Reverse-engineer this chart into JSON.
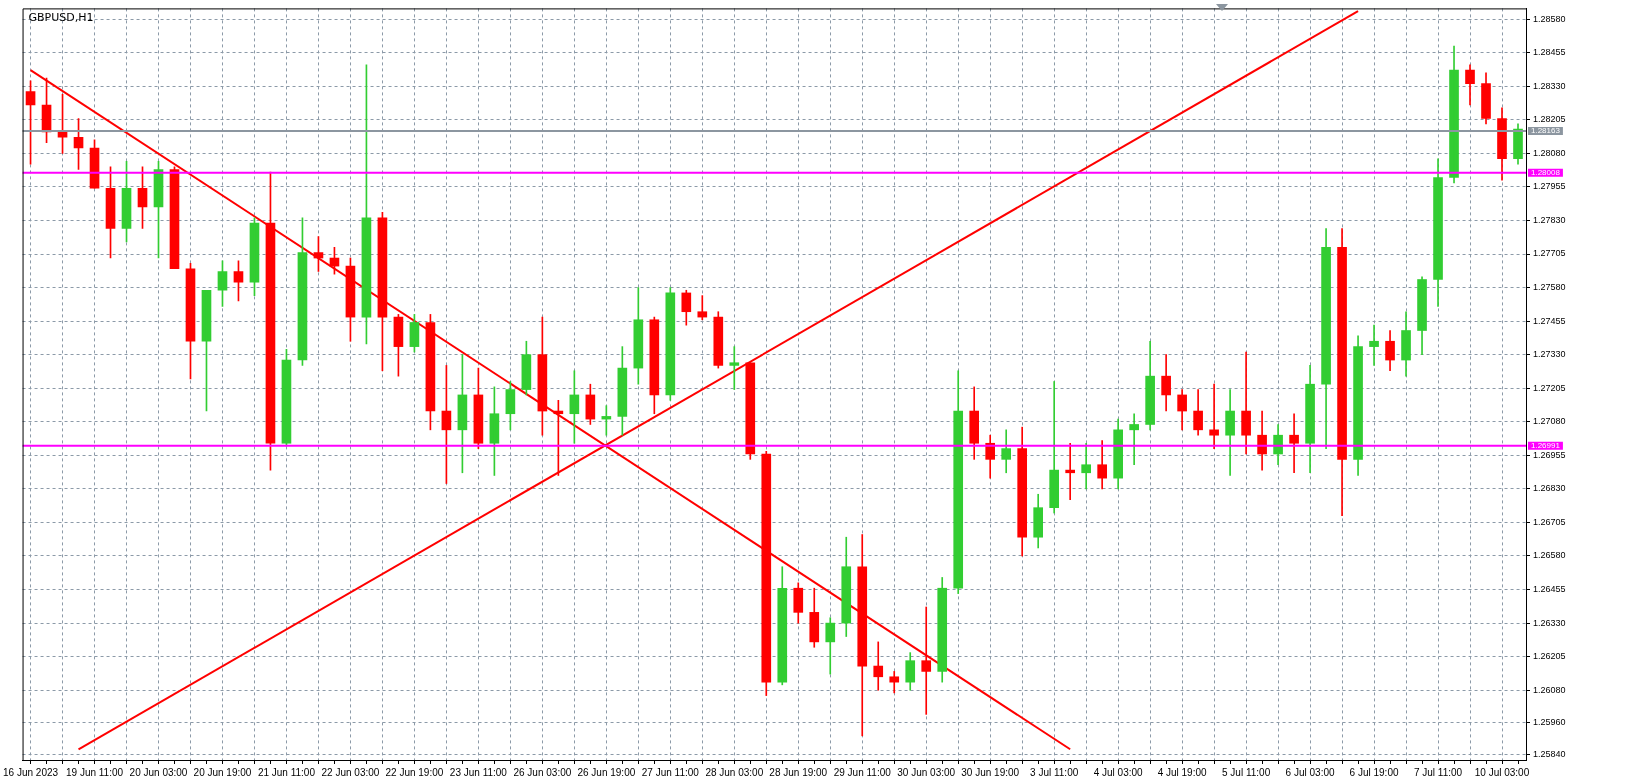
{
  "chart_data": {
    "type": "candlestick",
    "title": "GBPUSD,H1",
    "categories": [
      "16 Jun 2023",
      null,
      null,
      null,
      "19 Jun 11:00",
      null,
      null,
      null,
      "20 Jun 03:00",
      null,
      null,
      null,
      "20 Jun 19:00",
      null,
      null,
      null,
      "21 Jun 11:00",
      null,
      null,
      null,
      "22 Jun 03:00",
      null,
      null,
      null,
      "22 Jun 19:00",
      null,
      null,
      null,
      "23 Jun 11:00",
      null,
      null,
      null,
      "26 Jun 03:00",
      null,
      null,
      null,
      "26 Jun 19:00",
      null,
      null,
      null,
      "27 Jun 11:00",
      null,
      null,
      null,
      "28 Jun 03:00",
      null,
      null,
      null,
      "28 Jun 19:00",
      null,
      null,
      null,
      "29 Jun 11:00",
      null,
      null,
      null,
      "30 Jun 03:00",
      null,
      null,
      null,
      "30 Jun 19:00",
      null,
      null,
      null,
      "3 Jul 11:00",
      null,
      null,
      null,
      "4 Jul 03:00",
      null,
      null,
      null,
      "4 Jul 19:00",
      null,
      null,
      null,
      "5 Jul 11:00",
      null,
      null,
      null,
      "6 Jul 03:00",
      null,
      null,
      null,
      "6 Jul 19:00",
      null,
      null,
      null,
      "7 Jul 11:00",
      null,
      null,
      null,
      "10 Jul 03:00",
      null
    ],
    "ohlc": [
      [
        1.2831,
        1.2835,
        1.2804,
        1.2826
      ],
      [
        1.2826,
        1.2836,
        1.2812,
        1.2816
      ],
      [
        1.2816,
        1.283,
        1.2808,
        1.2814
      ],
      [
        1.2814,
        1.2821,
        1.2802,
        1.281
      ],
      [
        1.281,
        1.2813,
        1.2795,
        1.2795
      ],
      [
        1.2795,
        1.2803,
        1.2769,
        1.278
      ],
      [
        1.278,
        1.2805,
        1.2775,
        1.2795
      ],
      [
        1.2795,
        1.2803,
        1.278,
        1.2788
      ],
      [
        1.2788,
        1.2805,
        1.2769,
        1.2802
      ],
      [
        1.2802,
        1.2803,
        1.2765,
        1.2765
      ],
      [
        1.2765,
        1.2767,
        1.2724,
        1.2738
      ],
      [
        1.2738,
        1.2757,
        1.2712,
        1.2757
      ],
      [
        1.2757,
        1.2768,
        1.2751,
        1.2764
      ],
      [
        1.2764,
        1.2768,
        1.2753,
        1.276
      ],
      [
        1.276,
        1.2784,
        1.2755,
        1.2782
      ],
      [
        1.2782,
        1.2801,
        1.269,
        1.27
      ],
      [
        1.27,
        1.2735,
        1.2699,
        1.2731
      ],
      [
        1.2731,
        1.2784,
        1.2729,
        1.2771
      ],
      [
        1.2771,
        1.2777,
        1.2764,
        1.2769
      ],
      [
        1.2769,
        1.2773,
        1.2763,
        1.2766
      ],
      [
        1.2766,
        1.2769,
        1.2738,
        1.2747
      ],
      [
        1.2747,
        1.2841,
        1.2737,
        1.2784
      ],
      [
        1.2784,
        1.2786,
        1.2727,
        1.2747
      ],
      [
        1.2747,
        1.2748,
        1.2725,
        1.2736
      ],
      [
        1.2736,
        1.2748,
        1.2734,
        1.2745
      ],
      [
        1.2745,
        1.2748,
        1.2705,
        1.2712
      ],
      [
        1.2712,
        1.2729,
        1.2685,
        1.2705
      ],
      [
        1.2705,
        1.2733,
        1.2689,
        1.2718
      ],
      [
        1.2718,
        1.2728,
        1.2698,
        1.27
      ],
      [
        1.27,
        1.2721,
        1.2688,
        1.2711
      ],
      [
        1.2711,
        1.2723,
        1.2705,
        1.272
      ],
      [
        1.272,
        1.2738,
        1.2718,
        1.2733
      ],
      [
        1.2733,
        1.2747,
        1.2703,
        1.2712
      ],
      [
        1.2712,
        1.2716,
        1.2688,
        1.2711
      ],
      [
        1.2711,
        1.2727,
        1.27,
        1.2718
      ],
      [
        1.2718,
        1.2722,
        1.2707,
        1.2709
      ],
      [
        1.2709,
        1.2714,
        1.2703,
        1.271
      ],
      [
        1.271,
        1.2736,
        1.2703,
        1.2728
      ],
      [
        1.2728,
        1.2758,
        1.2722,
        1.2746
      ],
      [
        1.2746,
        1.2747,
        1.2711,
        1.2718
      ],
      [
        1.2718,
        1.2758,
        1.2716,
        1.2756
      ],
      [
        1.2756,
        1.2757,
        1.2744,
        1.2749
      ],
      [
        1.2749,
        1.2755,
        1.2746,
        1.2747
      ],
      [
        1.2747,
        1.2749,
        1.2728,
        1.2729
      ],
      [
        1.2729,
        1.2736,
        1.272,
        1.273
      ],
      [
        1.273,
        1.273,
        1.2694,
        1.2696
      ],
      [
        1.2696,
        1.2697,
        1.2606,
        1.2611
      ],
      [
        1.2611,
        1.2654,
        1.261,
        1.2646
      ],
      [
        1.2646,
        1.2648,
        1.2633,
        1.2637
      ],
      [
        1.2637,
        1.2646,
        1.2624,
        1.2626
      ],
      [
        1.2626,
        1.2635,
        1.2614,
        1.2633
      ],
      [
        1.2633,
        1.2665,
        1.2628,
        1.2654
      ],
      [
        1.2654,
        1.2666,
        1.2591,
        1.2617
      ],
      [
        1.2617,
        1.2626,
        1.2608,
        1.2613
      ],
      [
        1.2613,
        1.2615,
        1.2607,
        1.2611
      ],
      [
        1.2611,
        1.2622,
        1.2608,
        1.2619
      ],
      [
        1.2619,
        1.2639,
        1.2599,
        1.2615
      ],
      [
        1.2615,
        1.265,
        1.2611,
        1.2646
      ],
      [
        1.2646,
        1.2727,
        1.2644,
        1.2712
      ],
      [
        1.2712,
        1.2721,
        1.2694,
        1.27
      ],
      [
        1.27,
        1.2703,
        1.2687,
        1.2694
      ],
      [
        1.2694,
        1.2705,
        1.2689,
        1.2698
      ],
      [
        1.2698,
        1.2706,
        1.2658,
        1.2665
      ],
      [
        1.2665,
        1.2681,
        1.2661,
        1.2676
      ],
      [
        1.2676,
        1.2723,
        1.2674,
        1.269
      ],
      [
        1.269,
        1.27,
        1.2679,
        1.2689
      ],
      [
        1.2689,
        1.27,
        1.2683,
        1.2692
      ],
      [
        1.2692,
        1.2701,
        1.2683,
        1.2687
      ],
      [
        1.2687,
        1.2709,
        1.2683,
        1.2705
      ],
      [
        1.2705,
        1.2711,
        1.2692,
        1.2707
      ],
      [
        1.2707,
        1.2738,
        1.2705,
        1.2725
      ],
      [
        1.2725,
        1.2733,
        1.2712,
        1.2718
      ],
      [
        1.2718,
        1.272,
        1.2705,
        1.2712
      ],
      [
        1.2712,
        1.272,
        1.2703,
        1.2705
      ],
      [
        1.2705,
        1.2722,
        1.2698,
        1.2703
      ],
      [
        1.2703,
        1.272,
        1.2688,
        1.2712
      ],
      [
        1.2712,
        1.2734,
        1.2696,
        1.2703
      ],
      [
        1.2703,
        1.2712,
        1.269,
        1.2696
      ],
      [
        1.2696,
        1.2707,
        1.2692,
        1.2703
      ],
      [
        1.2703,
        1.2711,
        1.2689,
        1.27
      ],
      [
        1.27,
        1.2729,
        1.2689,
        1.2722
      ],
      [
        1.2722,
        1.278,
        1.2698,
        1.2773
      ],
      [
        1.2773,
        1.278,
        1.2673,
        1.2694
      ],
      [
        1.2694,
        1.274,
        1.2688,
        1.2736
      ],
      [
        1.2736,
        1.2744,
        1.2729,
        1.2738
      ],
      [
        1.2738,
        1.2742,
        1.2727,
        1.2731
      ],
      [
        1.2731,
        1.2749,
        1.2725,
        1.2742
      ],
      [
        1.2742,
        1.2762,
        1.2733,
        1.2761
      ],
      [
        1.2761,
        1.2806,
        1.2751,
        1.2799
      ],
      [
        1.2799,
        1.2848,
        1.2797,
        1.2839
      ],
      [
        1.2839,
        1.2841,
        1.2826,
        1.2834
      ],
      [
        1.2834,
        1.2838,
        1.2819,
        1.2821
      ],
      [
        1.2821,
        1.2825,
        1.2798,
        1.2806
      ],
      [
        1.2806,
        1.2819,
        1.2804,
        1.2817
      ]
    ],
    "colors": [
      "#ff0000",
      "#ff0000",
      "#ff0000",
      "#ff0000",
      "#ff0000",
      "#ff0000",
      "#32cd32",
      "#ff0000",
      "#32cd32",
      "#ff0000",
      "#ff0000",
      "#32cd32",
      "#32cd32",
      "#ff0000",
      "#32cd32",
      "#ff0000",
      "#32cd32",
      "#32cd32",
      "#ff0000",
      "#ff0000",
      "#ff0000",
      "#32cd32",
      "#ff0000",
      "#ff0000",
      "#32cd32",
      "#ff0000",
      "#ff0000",
      "#32cd32",
      "#ff0000",
      "#32cd32",
      "#32cd32",
      "#32cd32",
      "#ff0000",
      "#ff0000",
      "#32cd32",
      "#ff0000",
      "#32cd32",
      "#32cd32",
      "#32cd32",
      "#ff0000",
      "#32cd32",
      "#ff0000",
      "#ff0000",
      "#ff0000",
      "#32cd32",
      "#ff0000",
      "#ff0000",
      "#32cd32",
      "#ff0000",
      "#ff0000",
      "#32cd32",
      "#32cd32",
      "#ff0000",
      "#ff0000",
      "#ff0000",
      "#32cd32",
      "#ff0000",
      "#32cd32",
      "#32cd32",
      "#ff0000",
      "#ff0000",
      "#32cd32",
      "#ff0000",
      "#32cd32",
      "#32cd32",
      "#ff0000",
      "#32cd32",
      "#ff0000",
      "#32cd32",
      "#32cd32",
      "#32cd32",
      "#ff0000",
      "#ff0000",
      "#ff0000",
      "#ff0000",
      "#32cd32",
      "#ff0000",
      "#ff0000",
      "#32cd32",
      "#ff0000",
      "#32cd32",
      "#32cd32",
      "#ff0000",
      "#32cd32",
      "#32cd32",
      "#ff0000",
      "#32cd32",
      "#32cd32",
      "#32cd32",
      "#32cd32",
      "#ff0000",
      "#ff0000",
      "#ff0000",
      "#32cd32"
    ],
    "series": [
      {
        "type": "line",
        "color": "#ff0000",
        "values": [
          1.2839,
          null,
          null,
          null,
          null,
          null,
          null,
          null,
          null,
          null,
          null,
          null,
          null,
          null,
          null,
          null,
          null,
          null,
          null,
          null,
          null,
          null,
          null,
          null,
          null,
          null,
          null,
          null,
          null,
          null,
          null,
          null,
          null,
          null,
          null,
          null,
          null,
          null,
          null,
          null,
          null,
          null,
          null,
          null,
          null,
          null,
          null,
          null,
          null,
          null,
          null,
          null,
          null,
          null,
          null,
          null,
          null,
          null,
          null,
          null,
          null,
          null,
          null,
          null,
          null,
          1.2586,
          null,
          null,
          null,
          null,
          null,
          null,
          null,
          null,
          null,
          null,
          null,
          null,
          null,
          null,
          null,
          null,
          null,
          null,
          null,
          null,
          null,
          null,
          null,
          null,
          null,
          null,
          null,
          null
        ]
      },
      {
        "type": "line",
        "color": "#ff0000",
        "values": [
          null,
          null,
          null,
          1.2586,
          null,
          null,
          null,
          null,
          null,
          null,
          null,
          null,
          null,
          null,
          null,
          null,
          null,
          null,
          null,
          null,
          null,
          null,
          null,
          null,
          null,
          null,
          null,
          null,
          null,
          null,
          null,
          null,
          null,
          null,
          null,
          null,
          null,
          null,
          null,
          null,
          null,
          null,
          null,
          null,
          null,
          null,
          null,
          null,
          null,
          null,
          null,
          null,
          null,
          null,
          null,
          null,
          null,
          null,
          null,
          null,
          null,
          null,
          null,
          null,
          null,
          null,
          null,
          null,
          null,
          null,
          null,
          null,
          null,
          null,
          null,
          null,
          null,
          null,
          null,
          null,
          null,
          null,
          null,
          1.2861,
          null,
          null,
          null,
          null,
          null,
          null,
          null,
          null,
          null,
          null
        ]
      }
    ],
    "ylim": [
      1.2582,
      1.2862
    ],
    "yticks": [
      {
        "value": 1.2584,
        "label": "1.25840"
      },
      {
        "value": 1.2596,
        "label": "1.25960"
      },
      {
        "value": 1.2608,
        "label": "1.26080"
      },
      1.26205,
      {
        "value": 1.2633,
        "label": "1.26330"
      },
      1.26455,
      {
        "value": 1.2658,
        "label": "1.26580"
      },
      1.26705,
      {
        "value": 1.2683,
        "label": "1.26830"
      },
      1.26955,
      {
        "value": 1.2708,
        "label": "1.27080"
      },
      1.27205,
      {
        "value": 1.2733,
        "label": "1.27330"
      },
      1.27455,
      {
        "value": 1.2758,
        "label": "1.27580"
      },
      1.27705,
      {
        "value": 1.2783,
        "label": "1.27830"
      },
      1.27955,
      {
        "value": 1.2808,
        "label": "1.28080"
      },
      1.28205,
      {
        "value": 1.2833,
        "label": "1.28330"
      },
      1.28455,
      {
        "value": 1.2858,
        "label": "1.28580"
      }
    ],
    "ref_lines": [
      {
        "axis": "y",
        "value": 1.28163,
        "label": "1.28163",
        "color": "#8c96a0"
      },
      {
        "axis": "y",
        "value": 1.28008,
        "label": "1.28008",
        "color": "#ff00ff"
      },
      {
        "axis": "y",
        "value": 1.26991,
        "label": "1.26991",
        "color": "#ff00ff"
      }
    ],
    "grid": true,
    "legend": false
  }
}
